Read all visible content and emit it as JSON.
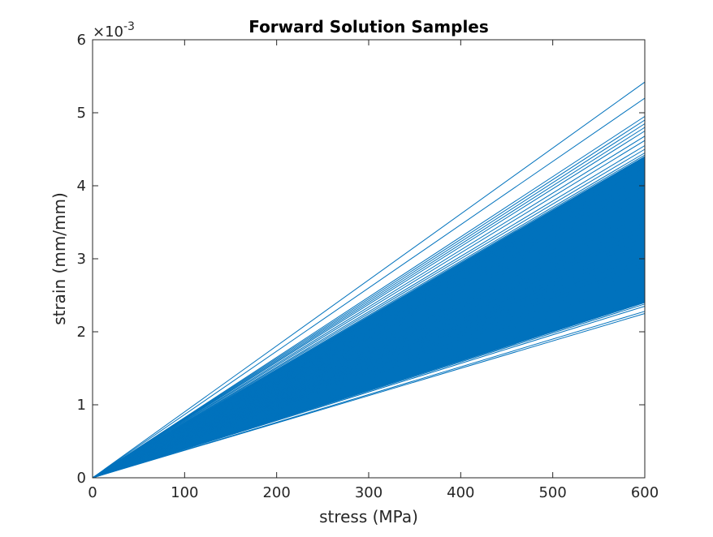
{
  "chart_data": {
    "type": "line",
    "title": "Forward Solution Samples",
    "xlabel": "stress (MPa)",
    "ylabel": "strain (mm/mm)",
    "xlim": [
      0,
      600
    ],
    "ylim": [
      0,
      0.006
    ],
    "x_ticks": [
      "0",
      "100",
      "200",
      "300",
      "400",
      "500",
      "600"
    ],
    "y_ticks": [
      "0",
      "1",
      "2",
      "3",
      "4",
      "5",
      "6"
    ],
    "y_exponent_base": "×10",
    "y_exponent_power": "-3",
    "grid": false,
    "series_color": "#0072BD",
    "sample_lines": {
      "x": [
        0,
        600
      ],
      "y_at_x_max_range": [
        0.00225,
        0.00542
      ],
      "dense_band_y_at_x_max": [
        0.0024,
        0.0044
      ],
      "outlier_y_at_x_max": [
        0.00542,
        0.0052,
        0.00495,
        0.0049,
        0.00485,
        0.0048,
        0.00475,
        0.00468,
        0.00462,
        0.00455,
        0.0045,
        0.00445,
        0.00442,
        0.00238,
        0.00235,
        0.00228,
        0.00225
      ]
    }
  }
}
